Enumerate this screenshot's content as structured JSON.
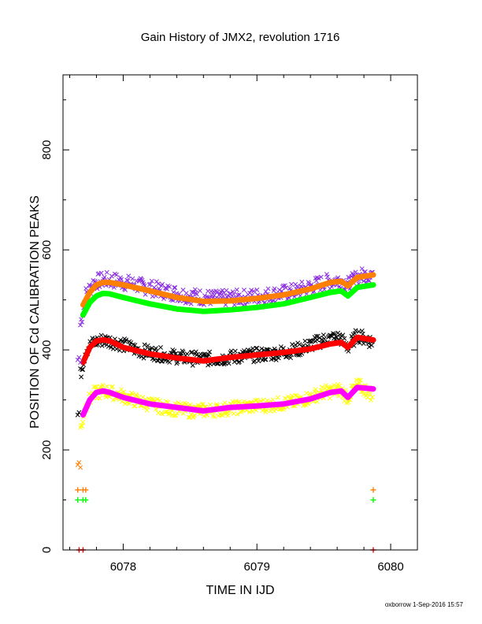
{
  "chart_data": {
    "type": "scatter",
    "title": "Gain History of JMX2, revolution 1716",
    "xlabel": "TIME IN IJD",
    "ylabel": "POSITION OF Cd CALIBRATION PEAKS",
    "xlim": [
      6077.55,
      6080.2
    ],
    "ylim": [
      0,
      950
    ],
    "x_ticks": [
      6078,
      6079,
      6080
    ],
    "y_ticks": [
      0,
      200,
      400,
      600,
      800
    ],
    "grid": false,
    "credit": "oxborrow  1-Sep-2016 15:57",
    "colors": {
      "orange": "#ff7f00",
      "green": "#00ff00",
      "red": "#ff0000",
      "magenta": "#ff00ff",
      "purple": "#8a2be2",
      "black": "#000000",
      "yellow": "#ffff00"
    },
    "series": [
      {
        "color": "purple",
        "marker": "x",
        "spread": 16,
        "x": [
          6077.68,
          6077.72,
          6077.78,
          6077.85,
          6077.95,
          6078.1,
          6078.3,
          6078.5,
          6078.7,
          6078.9,
          6079.1,
          6079.3,
          6079.5,
          6079.62,
          6079.68,
          6079.75,
          6079.87
        ],
        "y": [
          450,
          510,
          535,
          540,
          538,
          530,
          518,
          508,
          503,
          505,
          510,
          518,
          535,
          540,
          530,
          545,
          555
        ]
      },
      {
        "color": "black",
        "marker": "x",
        "spread": 14,
        "x": [
          6077.68,
          6077.72,
          6077.78,
          6077.85,
          6077.95,
          6078.1,
          6078.3,
          6078.5,
          6078.7,
          6078.9,
          6079.1,
          6079.3,
          6079.5,
          6079.62,
          6079.68,
          6079.75,
          6079.87
        ],
        "y": [
          350,
          400,
          415,
          420,
          415,
          400,
          390,
          383,
          382,
          388,
          392,
          400,
          420,
          425,
          405,
          430,
          415
        ]
      },
      {
        "color": "yellow",
        "marker": "x",
        "spread": 14,
        "x": [
          6077.68,
          6077.72,
          6077.78,
          6077.85,
          6077.95,
          6078.1,
          6078.3,
          6078.5,
          6078.7,
          6078.9,
          6079.1,
          6079.3,
          6079.5,
          6079.62,
          6079.68,
          6079.75,
          6079.87
        ],
        "y": [
          240,
          290,
          312,
          318,
          312,
          298,
          285,
          278,
          280,
          286,
          290,
          296,
          315,
          320,
          305,
          330,
          310
        ]
      },
      {
        "color": "orange",
        "marker": "line",
        "x": [
          6077.7,
          6077.75,
          6077.8,
          6077.85,
          6077.9,
          6078.0,
          6078.2,
          6078.4,
          6078.6,
          6078.8,
          6079.0,
          6079.2,
          6079.4,
          6079.55,
          6079.63,
          6079.68,
          6079.75,
          6079.87
        ],
        "y": [
          490,
          515,
          530,
          535,
          535,
          530,
          518,
          505,
          497,
          498,
          503,
          510,
          522,
          535,
          537,
          528,
          545,
          550
        ]
      },
      {
        "color": "green",
        "marker": "line",
        "x": [
          6077.7,
          6077.75,
          6077.8,
          6077.85,
          6077.9,
          6078.0,
          6078.2,
          6078.4,
          6078.6,
          6078.8,
          6079.0,
          6079.2,
          6079.4,
          6079.55,
          6079.63,
          6079.68,
          6079.75,
          6079.87
        ],
        "y": [
          470,
          495,
          508,
          513,
          512,
          505,
          492,
          482,
          477,
          480,
          485,
          492,
          505,
          515,
          518,
          508,
          525,
          530
        ]
      },
      {
        "color": "red",
        "marker": "line",
        "x": [
          6077.7,
          6077.75,
          6077.8,
          6077.85,
          6077.9,
          6078.0,
          6078.2,
          6078.4,
          6078.6,
          6078.8,
          6079.0,
          6079.2,
          6079.4,
          6079.55,
          6079.63,
          6079.68,
          6079.75,
          6079.87
        ],
        "y": [
          375,
          405,
          418,
          420,
          418,
          405,
          392,
          384,
          378,
          385,
          390,
          395,
          402,
          412,
          415,
          405,
          425,
          420
        ]
      },
      {
        "color": "magenta",
        "marker": "line",
        "x": [
          6077.7,
          6077.75,
          6077.8,
          6077.85,
          6077.9,
          6078.0,
          6078.2,
          6078.4,
          6078.6,
          6078.8,
          6079.0,
          6079.2,
          6079.4,
          6079.55,
          6079.63,
          6079.68,
          6079.75,
          6079.87
        ],
        "y": [
          270,
          300,
          315,
          318,
          315,
          305,
          292,
          285,
          278,
          285,
          288,
          292,
          302,
          315,
          318,
          305,
          325,
          322
        ]
      },
      {
        "color": "orange",
        "marker": "+",
        "x": [
          6077.66,
          6077.7,
          6077.72,
          6079.87
        ],
        "y": [
          120,
          120,
          120,
          120
        ]
      },
      {
        "color": "green",
        "marker": "+",
        "x": [
          6077.66,
          6077.7,
          6077.72,
          6079.87
        ],
        "y": [
          100,
          100,
          100,
          100
        ]
      },
      {
        "color": "red",
        "marker": "+",
        "x": [
          6077.67,
          6077.7,
          6079.87
        ],
        "y": [
          0,
          0,
          0
        ]
      },
      {
        "color": "orange",
        "marker": "x",
        "x": [
          6077.66,
          6077.67,
          6077.68
        ],
        "y": [
          170,
          175,
          165
        ]
      },
      {
        "color": "purple",
        "marker": "x",
        "x": [
          6077.66,
          6077.67,
          6077.68
        ],
        "y": [
          380,
          385,
          375
        ]
      },
      {
        "color": "black",
        "marker": "x",
        "x": [
          6077.66,
          6077.67
        ],
        "y": [
          270,
          275
        ]
      }
    ]
  }
}
